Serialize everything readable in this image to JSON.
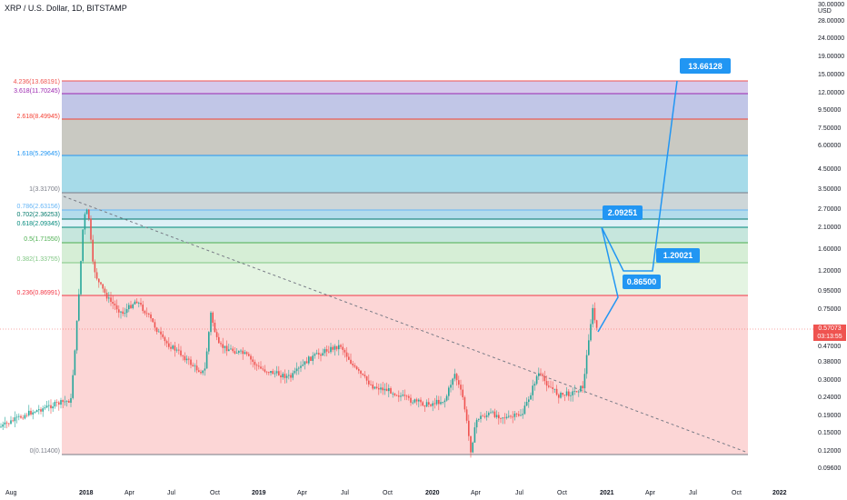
{
  "header": {
    "symbol_title": "XRP / U.S. Dollar, 1D, BITSTAMP"
  },
  "price_axis": {
    "unit": "USD",
    "labels": [
      "28.00000",
      "24.00000",
      "19.00000",
      "15.00000",
      "12.00000",
      "9.50000",
      "7.50000",
      "6.00000",
      "4.50000",
      "3.50000",
      "2.70000",
      "2.10000",
      "1.60000",
      "1.20000",
      "0.95000",
      "0.75000",
      "0.47000",
      "0.38000",
      "0.30000",
      "0.24000",
      "0.19000",
      "0.15000",
      "0.12000",
      "0.09600",
      "30.00000"
    ],
    "current_price": "0.57073",
    "countdown": "03:13:55"
  },
  "time_axis": {
    "labels": [
      "Aug",
      "2018",
      "Apr",
      "Jul",
      "Oct",
      "2019",
      "Apr",
      "Jul",
      "Oct",
      "2020",
      "Apr",
      "Jul",
      "Oct",
      "2021",
      "Apr",
      "Jul",
      "Oct",
      "2022"
    ]
  },
  "fib_levels": [
    {
      "label": "4.236(13.68191)",
      "color": "#ef5350"
    },
    {
      "label": "3.618(11.70245)",
      "color": "#9c27b0"
    },
    {
      "label": "2.618(8.49945)",
      "color": "#f44336"
    },
    {
      "label": "1.618(5.29645)",
      "color": "#2196f3"
    },
    {
      "label": "1(3.31700)",
      "color": "#787b86"
    },
    {
      "label": "0.786(2.63156)",
      "color": "#64b5f6"
    },
    {
      "label": "0.702(2.36253)",
      "color": "#00796b"
    },
    {
      "label": "0.618(2.09345)",
      "color": "#00897b"
    },
    {
      "label": "0.5(1.71550)",
      "color": "#4caf50"
    },
    {
      "label": "0.382(1.33755)",
      "color": "#81c784"
    },
    {
      "label": "0.236(0.86991)",
      "color": "#f23645"
    },
    {
      "label": "0(0.11400)",
      "color": "#787b86"
    }
  ],
  "callouts": [
    "13.66128",
    "2.09251",
    "1.20021",
    "0.86500"
  ],
  "colors": {
    "accent_blue": "#2196f3",
    "candle_up": "#26a69a",
    "candle_down": "#ef5350"
  }
}
